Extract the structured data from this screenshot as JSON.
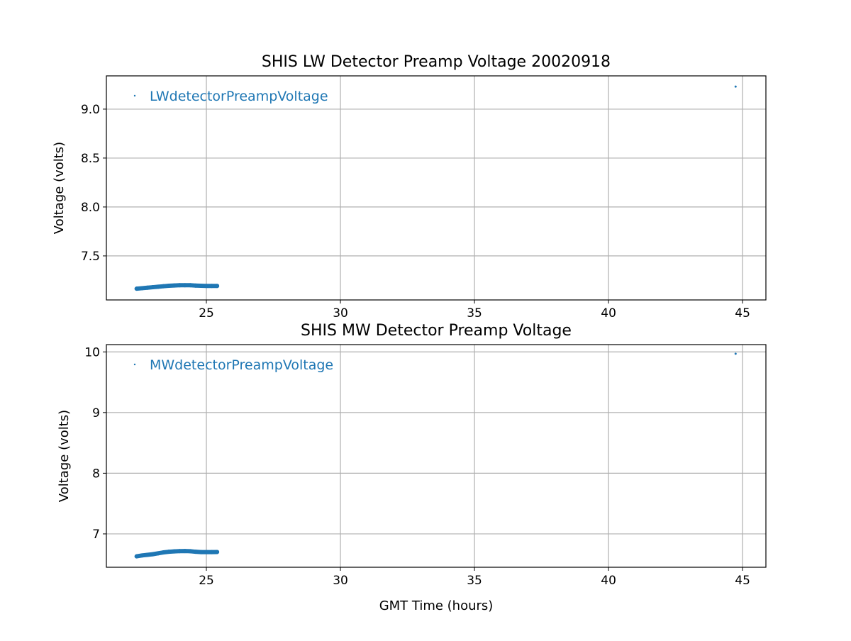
{
  "chart_data": [
    {
      "type": "scatter",
      "title": "SHIS LW Detector Preamp Voltage 20020918",
      "xlabel": "",
      "ylabel": "Voltage (volts)",
      "xlim": [
        21.27,
        45.87
      ],
      "ylim": [
        7.05,
        9.34
      ],
      "xticks": [
        25,
        30,
        35,
        40,
        45
      ],
      "yticks": [
        7.5,
        8.0,
        8.5,
        9.0
      ],
      "xtick_labels": [
        "25",
        "30",
        "35",
        "40",
        "45"
      ],
      "ytick_labels": [
        "7.5",
        "8.0",
        "8.5",
        "9.0"
      ],
      "grid": true,
      "legend_placement": "upper-left",
      "color": "#1f77b4",
      "series": [
        {
          "name": "LWdetectorPreampVoltage",
          "x": [
            22.4,
            22.6,
            22.8,
            23.0,
            23.2,
            23.4,
            23.6,
            23.8,
            24.0,
            24.2,
            24.4,
            24.6,
            24.8,
            25.0,
            25.2,
            25.4,
            44.74
          ],
          "y": [
            7.165,
            7.17,
            7.175,
            7.18,
            7.185,
            7.19,
            7.195,
            7.198,
            7.2,
            7.2,
            7.2,
            7.197,
            7.195,
            7.193,
            7.193,
            7.193,
            9.23
          ]
        }
      ]
    },
    {
      "type": "scatter",
      "title": "SHIS MW Detector Preamp Voltage",
      "xlabel": "GMT Time (hours)",
      "ylabel": "Voltage (volts)",
      "xlim": [
        21.27,
        45.87
      ],
      "ylim": [
        6.45,
        10.12
      ],
      "xticks": [
        25,
        30,
        35,
        40,
        45
      ],
      "yticks": [
        7,
        8,
        9,
        10
      ],
      "xtick_labels": [
        "25",
        "30",
        "35",
        "40",
        "45"
      ],
      "ytick_labels": [
        "7",
        "8",
        "9",
        "10"
      ],
      "grid": true,
      "legend_placement": "upper-left",
      "color": "#1f77b4",
      "series": [
        {
          "name": "MWdetectorPreampVoltage",
          "x": [
            22.4,
            22.6,
            22.8,
            23.0,
            23.2,
            23.4,
            23.6,
            23.8,
            24.0,
            24.2,
            24.4,
            24.6,
            24.8,
            25.0,
            25.2,
            25.4,
            44.74
          ],
          "y": [
            6.63,
            6.645,
            6.655,
            6.665,
            6.68,
            6.695,
            6.705,
            6.712,
            6.716,
            6.718,
            6.714,
            6.705,
            6.7,
            6.7,
            6.7,
            6.702,
            9.97
          ]
        }
      ]
    }
  ]
}
